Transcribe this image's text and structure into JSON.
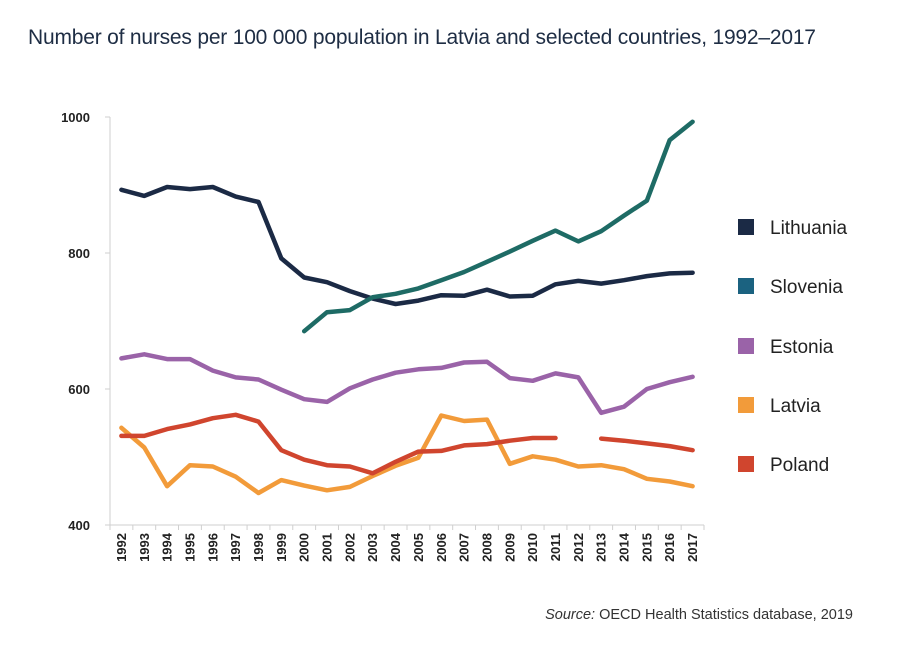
{
  "title": "Number of nurses per 100 000 population in Latvia and selected countries, 1992–2017",
  "source": {
    "label": "Source:",
    "text": " OECD Health Statistics database, 2019"
  },
  "chart_data": {
    "type": "line",
    "title": "Number of nurses per 100 000 population in Latvia and selected countries, 1992–2017",
    "xlabel": "",
    "ylabel": "",
    "ylim": [
      400,
      1000
    ],
    "yticks": [
      400,
      600,
      800,
      1000
    ],
    "grid": false,
    "legend": "right",
    "x": [
      "1992",
      "1993",
      "1994",
      "1995",
      "1996",
      "1997",
      "1998",
      "1999",
      "2000",
      "2001",
      "2002",
      "2003",
      "2004",
      "2005",
      "2006",
      "2007",
      "2008",
      "2009",
      "2010",
      "2011",
      "2012",
      "2013",
      "2014",
      "2015",
      "2016",
      "2017"
    ],
    "series": [
      {
        "name": "Lithuania",
        "color": "#1b2a45",
        "values": [
          893,
          884,
          897,
          894,
          897,
          883,
          875,
          792,
          764,
          757,
          744,
          733,
          725,
          730,
          738,
          737,
          746,
          736,
          737,
          754,
          759,
          755,
          760,
          766,
          770,
          771
        ]
      },
      {
        "name": "Slovenia",
        "color": "#1e6b65",
        "values": [
          null,
          null,
          null,
          null,
          null,
          null,
          null,
          null,
          685,
          713,
          716,
          735,
          740,
          748,
          760,
          772,
          787,
          802,
          818,
          833,
          817,
          832,
          855,
          877,
          966,
          993
        ]
      },
      {
        "name": "Estonia",
        "color": "#9a63a8",
        "values": [
          645,
          651,
          644,
          644,
          627,
          617,
          614,
          599,
          585,
          581,
          601,
          614,
          624,
          629,
          631,
          639,
          640,
          616,
          612,
          623,
          617,
          565,
          574,
          600,
          610,
          618
        ]
      },
      {
        "name": "Latvia",
        "color": "#f29b3a",
        "values": [
          543,
          514,
          457,
          488,
          486,
          471,
          447,
          466,
          458,
          451,
          456,
          472,
          487,
          499,
          561,
          553,
          555,
          490,
          501,
          496,
          486,
          488,
          482,
          468,
          464,
          457
        ]
      },
      {
        "name": "Poland",
        "color": "#d0452e",
        "values": [
          531,
          531,
          541,
          548,
          557,
          562,
          552,
          510,
          496,
          488,
          486,
          476,
          493,
          508,
          509,
          517,
          519,
          524,
          528,
          528,
          null,
          527,
          524,
          520,
          516,
          510
        ]
      }
    ]
  }
}
